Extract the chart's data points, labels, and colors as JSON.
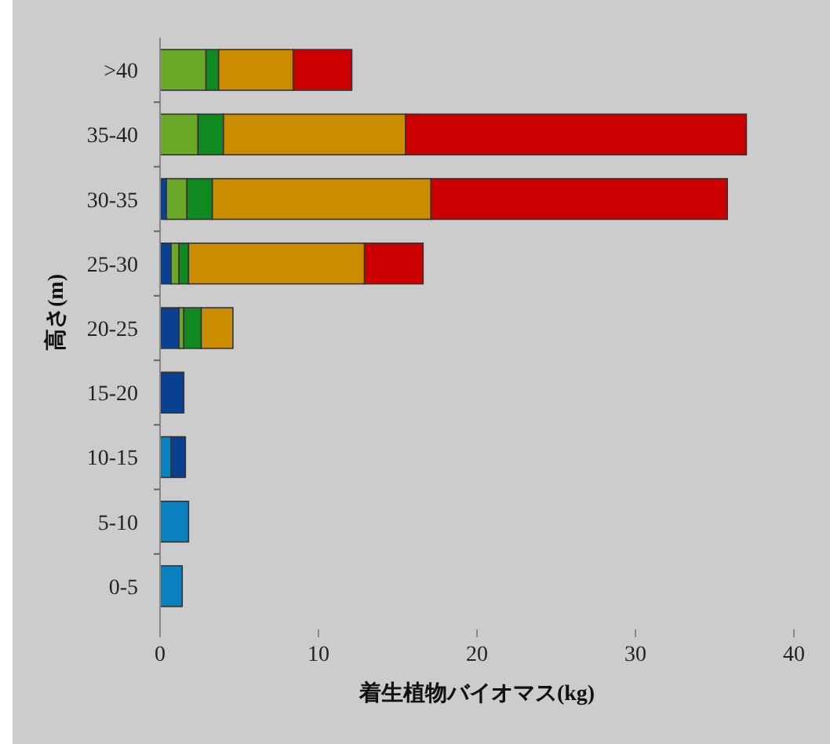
{
  "chart_data": {
    "type": "bar",
    "orientation": "horizontal",
    "stacked": true,
    "xlabel": "着生植物バイオマス(kg)",
    "ylabel": "高さ(m)",
    "categories": [
      ">40",
      "35-40",
      "30-35",
      "25-30",
      "20-25",
      "15-20",
      "10-15",
      "5-10",
      "0-5"
    ],
    "series": [
      {
        "color": "#0a80c0",
        "values": [
          0,
          0,
          0,
          0,
          0,
          0,
          0.7,
          1.8,
          1.4
        ]
      },
      {
        "color": "#0a4090",
        "values": [
          0,
          0,
          0.4,
          0.7,
          1.2,
          1.5,
          0.9,
          0,
          0
        ]
      },
      {
        "color": "#6aa828",
        "values": [
          2.9,
          2.4,
          1.3,
          0.5,
          0.3,
          0,
          0,
          0,
          0
        ]
      },
      {
        "color": "#108a20",
        "values": [
          0.8,
          1.6,
          1.6,
          0.6,
          1.1,
          0,
          0,
          0,
          0
        ]
      },
      {
        "color": "#cc8c00",
        "values": [
          4.7,
          11.5,
          13.8,
          11.1,
          2.0,
          0,
          0,
          0,
          0
        ]
      },
      {
        "color": "#cc0000",
        "values": [
          3.7,
          21.5,
          18.7,
          3.7,
          0,
          0,
          0,
          0,
          0
        ]
      }
    ],
    "xlim": [
      0,
      40
    ],
    "xticks": [
      0,
      10,
      20,
      30,
      40
    ],
    "grid": false
  }
}
